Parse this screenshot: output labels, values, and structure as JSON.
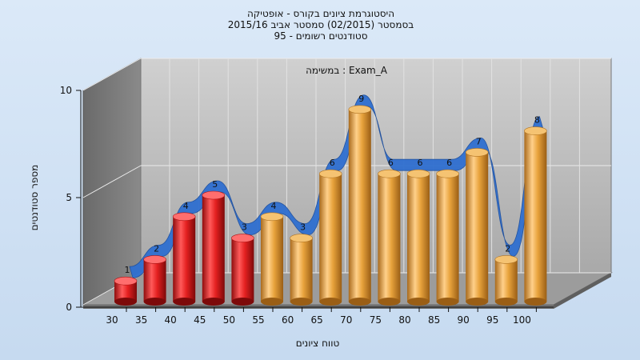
{
  "chart_data": {
    "type": "bar",
    "title_lines": [
      "היסטוגרמת ציונים בקורס - אופטיקה",
      "בסמסטר  (02/2015)  סמסטר אביב 2015/16",
      "סטודנטים רשומים - 95"
    ],
    "subtitle": "במשימה : Exam_A",
    "xlabel": "טווח ציונים",
    "ylabel": "מספר סטודנטים",
    "ylim": [
      0,
      10
    ],
    "y_ticks": [
      0,
      5,
      10
    ],
    "categories": [
      "30",
      "35",
      "40",
      "45",
      "50",
      "55",
      "60",
      "65",
      "70",
      "75",
      "80",
      "85",
      "90",
      "95",
      "100"
    ],
    "values": [
      1,
      2,
      4,
      5,
      3,
      4,
      3,
      6,
      9,
      6,
      6,
      6,
      7,
      2,
      8
    ],
    "colors": {
      "fail_bar": "#e02020",
      "pass_bar": "#e8a33c",
      "trend_band": "#2f6fd0",
      "back_wall": "#b4b4b4",
      "side_wall": "#7a7a7a"
    },
    "grid": true,
    "legend": "none"
  }
}
